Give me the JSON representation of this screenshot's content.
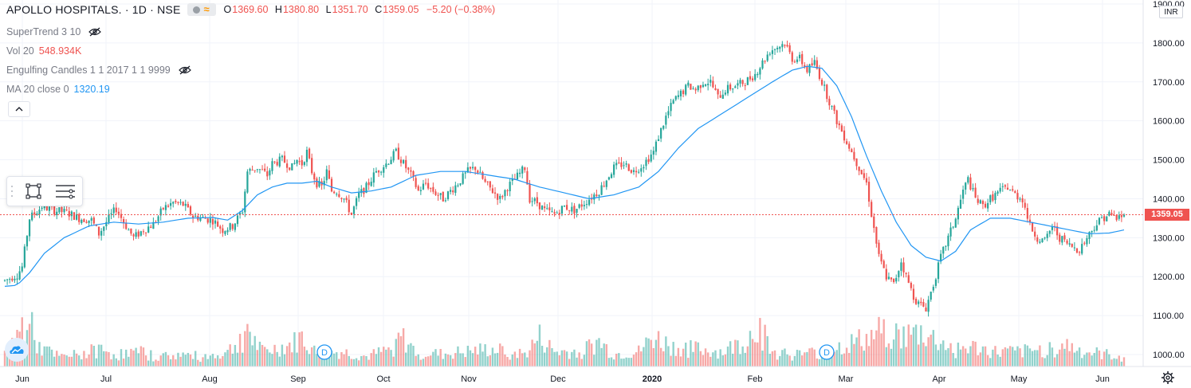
{
  "header": {
    "symbol": "APOLLO HOSPITALS. · 1D · NSE",
    "open_label": "O",
    "open": "1369.60",
    "high_label": "H",
    "high": "1380.80",
    "low_label": "L",
    "low": "1351.70",
    "close_label": "C",
    "close": "1359.05",
    "change": "−5.20 (−0.38%)"
  },
  "indicators": [
    {
      "label": "SuperTrend 3 10",
      "value": ""
    },
    {
      "label": "Vol 20",
      "value": "548.934K"
    },
    {
      "label": "Engulfing Candles 1 1 2017 1 1 9999",
      "value": ""
    },
    {
      "label": "MA 20 close 0",
      "value": "1320.19"
    }
  ],
  "currency": "INR",
  "last_price_tag": "1359.05",
  "dividend_marker": "D",
  "colors": {
    "up": "#26a69a",
    "down": "#ef5350",
    "ma": "#2196f3",
    "grid": "#f0f3fa",
    "text": "#131722"
  },
  "chart_data": {
    "type": "candlestick",
    "y_axis": {
      "ticks": [
        "1000.00",
        "1100.00",
        "1200.00",
        "1300.00",
        "1400.00",
        "1500.00",
        "1600.00",
        "1700.00",
        "1800.00",
        "1900.00"
      ],
      "range": [
        970,
        1910
      ]
    },
    "x_axis": {
      "ticks": [
        "Jun",
        "Jul",
        "Aug",
        "Sep",
        "Oct",
        "Nov",
        "Dec",
        "2020",
        "Feb",
        "Mar",
        "Apr",
        "May",
        "Jun"
      ]
    },
    "last_price": 1359.05,
    "price_path": [
      [
        0,
        1190
      ],
      [
        5,
        1205
      ],
      [
        7,
        1225
      ],
      [
        10,
        1350
      ],
      [
        15,
        1380
      ],
      [
        20,
        1370
      ],
      [
        25,
        1365
      ],
      [
        30,
        1350
      ],
      [
        35,
        1345
      ],
      [
        38,
        1310
      ],
      [
        42,
        1350
      ],
      [
        45,
        1375
      ],
      [
        48,
        1340
      ],
      [
        52,
        1300
      ],
      [
        56,
        1320
      ],
      [
        60,
        1335
      ],
      [
        64,
        1375
      ],
      [
        68,
        1390
      ],
      [
        72,
        1385
      ],
      [
        76,
        1355
      ],
      [
        80,
        1350
      ],
      [
        84,
        1345
      ],
      [
        88,
        1320
      ],
      [
        92,
        1330
      ],
      [
        94,
        1350
      ],
      [
        96,
        1370
      ],
      [
        98,
        1470
      ],
      [
        102,
        1480
      ],
      [
        106,
        1460
      ],
      [
        108,
        1490
      ],
      [
        112,
        1500
      ],
      [
        116,
        1480
      ],
      [
        118,
        1500
      ],
      [
        120,
        1490
      ],
      [
        122,
        1520
      ],
      [
        124,
        1470
      ],
      [
        126,
        1440
      ],
      [
        128,
        1430
      ],
      [
        130,
        1470
      ],
      [
        132,
        1420
      ],
      [
        134,
        1420
      ],
      [
        137,
        1400
      ],
      [
        140,
        1360
      ],
      [
        143,
        1410
      ],
      [
        146,
        1430
      ],
      [
        150,
        1470
      ],
      [
        154,
        1490
      ],
      [
        158,
        1520
      ],
      [
        162,
        1480
      ],
      [
        164,
        1460
      ],
      [
        167,
        1420
      ],
      [
        170,
        1440
      ],
      [
        173,
        1420
      ],
      [
        177,
        1400
      ],
      [
        180,
        1420
      ],
      [
        183,
        1440
      ],
      [
        187,
        1470
      ],
      [
        190,
        1480
      ],
      [
        194,
        1440
      ],
      [
        197,
        1420
      ],
      [
        200,
        1400
      ],
      [
        203,
        1430
      ],
      [
        206,
        1450
      ],
      [
        210,
        1480
      ],
      [
        212,
        1400
      ],
      [
        215,
        1390
      ],
      [
        218,
        1370
      ],
      [
        222,
        1360
      ],
      [
        226,
        1380
      ],
      [
        230,
        1370
      ],
      [
        232,
        1380
      ],
      [
        234,
        1390
      ],
      [
        236,
        1400
      ],
      [
        240,
        1420
      ],
      [
        243,
        1450
      ],
      [
        246,
        1480
      ],
      [
        250,
        1490
      ],
      [
        254,
        1470
      ],
      [
        258,
        1490
      ],
      [
        262,
        1520
      ],
      [
        264,
        1560
      ],
      [
        267,
        1610
      ],
      [
        270,
        1650
      ],
      [
        273,
        1670
      ],
      [
        276,
        1690
      ],
      [
        279,
        1680
      ],
      [
        282,
        1700
      ],
      [
        285,
        1700
      ],
      [
        288,
        1660
      ],
      [
        291,
        1680
      ],
      [
        295,
        1690
      ],
      [
        299,
        1700
      ],
      [
        303,
        1720
      ],
      [
        306,
        1750
      ],
      [
        309,
        1780
      ],
      [
        312,
        1790
      ],
      [
        315,
        1800
      ],
      [
        318,
        1760
      ],
      [
        321,
        1760
      ],
      [
        324,
        1730
      ],
      [
        327,
        1750
      ],
      [
        330,
        1700
      ],
      [
        333,
        1650
      ],
      [
        336,
        1600
      ],
      [
        339,
        1560
      ],
      [
        342,
        1520
      ],
      [
        345,
        1480
      ],
      [
        348,
        1440
      ],
      [
        350,
        1360
      ],
      [
        353,
        1250
      ],
      [
        356,
        1200
      ],
      [
        359,
        1180
      ],
      [
        362,
        1240
      ],
      [
        364,
        1200
      ],
      [
        367,
        1150
      ],
      [
        369,
        1130
      ],
      [
        372,
        1120
      ],
      [
        375,
        1180
      ],
      [
        378,
        1250
      ],
      [
        381,
        1300
      ],
      [
        384,
        1350
      ],
      [
        387,
        1420
      ],
      [
        389,
        1450
      ],
      [
        392,
        1400
      ],
      [
        395,
        1380
      ],
      [
        398,
        1400
      ],
      [
        402,
        1420
      ],
      [
        405,
        1430
      ],
      [
        408,
        1410
      ],
      [
        411,
        1400
      ],
      [
        414,
        1330
      ],
      [
        417,
        1300
      ],
      [
        420,
        1290
      ],
      [
        423,
        1330
      ],
      [
        426,
        1300
      ],
      [
        430,
        1280
      ],
      [
        434,
        1270
      ],
      [
        437,
        1300
      ],
      [
        440,
        1330
      ],
      [
        443,
        1350
      ],
      [
        446,
        1360
      ],
      [
        449,
        1350
      ],
      [
        452,
        1359
      ]
    ],
    "ma_path": [
      [
        0,
        1175
      ],
      [
        5,
        1178
      ],
      [
        10,
        1210
      ],
      [
        16,
        1260
      ],
      [
        24,
        1300
      ],
      [
        34,
        1330
      ],
      [
        44,
        1340
      ],
      [
        54,
        1335
      ],
      [
        64,
        1340
      ],
      [
        74,
        1350
      ],
      [
        84,
        1352
      ],
      [
        90,
        1345
      ],
      [
        96,
        1370
      ],
      [
        102,
        1410
      ],
      [
        108,
        1430
      ],
      [
        114,
        1440
      ],
      [
        120,
        1440
      ],
      [
        126,
        1445
      ],
      [
        132,
        1430
      ],
      [
        140,
        1415
      ],
      [
        148,
        1420
      ],
      [
        156,
        1430
      ],
      [
        166,
        1460
      ],
      [
        176,
        1470
      ],
      [
        186,
        1470
      ],
      [
        196,
        1460
      ],
      [
        206,
        1450
      ],
      [
        216,
        1430
      ],
      [
        226,
        1415
      ],
      [
        236,
        1400
      ],
      [
        246,
        1410
      ],
      [
        256,
        1430
      ],
      [
        264,
        1470
      ],
      [
        272,
        1530
      ],
      [
        280,
        1580
      ],
      [
        290,
        1620
      ],
      [
        300,
        1660
      ],
      [
        310,
        1700
      ],
      [
        318,
        1730
      ],
      [
        324,
        1740
      ],
      [
        330,
        1735
      ],
      [
        336,
        1690
      ],
      [
        342,
        1610
      ],
      [
        348,
        1510
      ],
      [
        354,
        1420
      ],
      [
        360,
        1340
      ],
      [
        366,
        1280
      ],
      [
        372,
        1250
      ],
      [
        378,
        1240
      ],
      [
        384,
        1265
      ],
      [
        390,
        1320
      ],
      [
        398,
        1350
      ],
      [
        406,
        1350
      ],
      [
        414,
        1340
      ],
      [
        422,
        1330
      ],
      [
        430,
        1320
      ],
      [
        438,
        1310
      ],
      [
        446,
        1312
      ],
      [
        452,
        1320
      ]
    ],
    "volume_path": [
      [
        0,
        0.3
      ],
      [
        4,
        0.55
      ],
      [
        9,
        1.0
      ],
      [
        14,
        0.4
      ],
      [
        22,
        0.2
      ],
      [
        30,
        0.25
      ],
      [
        38,
        0.35
      ],
      [
        46,
        0.25
      ],
      [
        54,
        0.3
      ],
      [
        62,
        0.2
      ],
      [
        70,
        0.25
      ],
      [
        80,
        0.2
      ],
      [
        90,
        0.3
      ],
      [
        96,
        0.6
      ],
      [
        98,
        0.9
      ],
      [
        100,
        0.55
      ],
      [
        104,
        0.3
      ],
      [
        116,
        0.45
      ],
      [
        120,
        0.6
      ],
      [
        126,
        0.25
      ],
      [
        136,
        0.3
      ],
      [
        146,
        0.2
      ],
      [
        156,
        0.35
      ],
      [
        160,
        0.6
      ],
      [
        166,
        0.3
      ],
      [
        176,
        0.25
      ],
      [
        186,
        0.3
      ],
      [
        196,
        0.35
      ],
      [
        210,
        0.25
      ],
      [
        216,
        0.6
      ],
      [
        222,
        0.3
      ],
      [
        232,
        0.3
      ],
      [
        240,
        0.5
      ],
      [
        246,
        0.25
      ],
      [
        256,
        0.3
      ],
      [
        262,
        0.6
      ],
      [
        270,
        0.4
      ],
      [
        280,
        0.35
      ],
      [
        290,
        0.3
      ],
      [
        300,
        0.55
      ],
      [
        304,
        0.9
      ],
      [
        310,
        0.3
      ],
      [
        320,
        0.25
      ],
      [
        330,
        0.3
      ],
      [
        340,
        0.45
      ],
      [
        350,
        0.6
      ],
      [
        356,
        0.8
      ],
      [
        362,
        0.6
      ],
      [
        370,
        0.7
      ],
      [
        378,
        0.5
      ],
      [
        384,
        0.35
      ],
      [
        390,
        0.4
      ],
      [
        400,
        0.3
      ],
      [
        410,
        0.3
      ],
      [
        420,
        0.35
      ],
      [
        428,
        0.45
      ],
      [
        436,
        0.3
      ],
      [
        444,
        0.25
      ],
      [
        452,
        0.2
      ]
    ]
  }
}
